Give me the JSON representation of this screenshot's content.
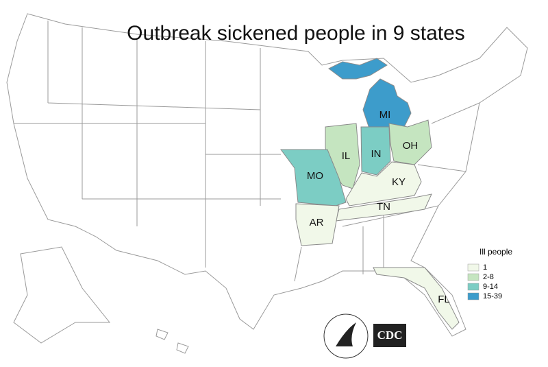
{
  "title": "Outbreak sickened people in 9 states",
  "states": [
    {
      "label": "MI",
      "color": "#3d9ccb"
    },
    {
      "label": "IL",
      "color": "#c5e5c0"
    },
    {
      "label": "IN",
      "color": "#7ccdc4"
    },
    {
      "label": "OH",
      "color": "#c5e5c0"
    },
    {
      "label": "MO",
      "color": "#7ccdc4"
    },
    {
      "label": "KY",
      "color": "#f1f8e9"
    },
    {
      "label": "TN",
      "color": "#f1f8e9"
    },
    {
      "label": "AR",
      "color": "#f1f8e9"
    },
    {
      "label": "FL",
      "color": "#f1f8e9"
    }
  ],
  "legend": {
    "title": "Ill people",
    "items": [
      {
        "label": "1",
        "color": "#f1f8e9"
      },
      {
        "label": "2-8",
        "color": "#c5e5c0"
      },
      {
        "label": "9-14",
        "color": "#7ccdc4"
      },
      {
        "label": "15-39",
        "color": "#3d9ccb"
      }
    ]
  },
  "logos": {
    "cdc": "CDC"
  }
}
